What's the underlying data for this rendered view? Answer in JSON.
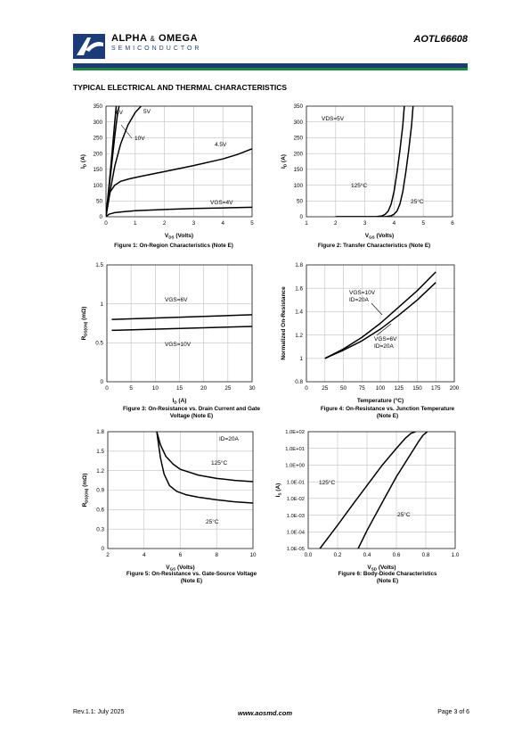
{
  "header": {
    "company_name": "ALPHA",
    "company_amp": "&",
    "company_name2": "OMEGA",
    "company_sub": "SEMICONDUCTOR",
    "part_number": "AOTL66608"
  },
  "section_title": "TYPICAL ELECTRICAL AND THERMAL CHARACTERISTICS",
  "figures": [
    {
      "caption_line1": "Figure 1: On-Region Characteristics (Note E)",
      "caption_line2": ""
    },
    {
      "caption_line1": "Figure 2: Transfer Characteristics (Note E)",
      "caption_line2": ""
    },
    {
      "caption_line1": "Figure 3: On-Resistance vs. Drain Current and Gate",
      "caption_line2": "Voltage (Note E)"
    },
    {
      "caption_line1": "Figure 4: On-Resistance vs. Junction Temperature",
      "caption_line2": "(Note E)"
    },
    {
      "caption_line1": "Figure 5: On-Resistance vs. Gate-Source Voltage",
      "caption_line2": "(Note E)"
    },
    {
      "caption_line1": "Figure 6: Body-Diode Characteristics",
      "caption_line2": "(Note E)"
    }
  ],
  "chart_data": [
    {
      "type": "line",
      "xlabel": "VDS (Volts)",
      "ylabel": "ID (A)",
      "xlim": [
        0,
        5
      ],
      "ylim": [
        0,
        350
      ],
      "xticks": [
        "0",
        "1",
        "2",
        "3",
        "4",
        "5"
      ],
      "yticks": [
        "0",
        "50",
        "100",
        "150",
        "200",
        "250",
        "300",
        "350"
      ],
      "grid": true,
      "annotations": [
        "6V",
        "5V",
        "10V",
        "4.5V",
        "VGS=4V"
      ],
      "series": [
        {
          "name": "10V",
          "x": [
            0,
            0.1,
            0.2,
            0.3,
            0.35
          ],
          "y": [
            0,
            95,
            195,
            300,
            350
          ]
        },
        {
          "name": "6V",
          "x": [
            0,
            0.1,
            0.2,
            0.3,
            0.4,
            0.45
          ],
          "y": [
            0,
            85,
            170,
            255,
            330,
            350
          ]
        },
        {
          "name": "5V",
          "x": [
            0,
            0.15,
            0.3,
            0.5,
            0.75,
            1.0,
            1.2
          ],
          "y": [
            0,
            85,
            160,
            230,
            290,
            330,
            350
          ]
        },
        {
          "name": "4.5V",
          "x": [
            0,
            0.05,
            0.15,
            0.3,
            0.5,
            0.8,
            1.2,
            2.0,
            3.0,
            4.0,
            4.5,
            5.0
          ],
          "y": [
            0,
            45,
            80,
            100,
            112,
            120,
            128,
            143,
            162,
            183,
            197,
            215
          ]
        },
        {
          "name": "VGS=4V",
          "x": [
            0,
            0.1,
            0.3,
            0.6,
            1.0,
            2.0,
            3.0,
            4.0,
            5.0
          ],
          "y": [
            0,
            8,
            13,
            16,
            19,
            23,
            26,
            28,
            30
          ]
        }
      ]
    },
    {
      "type": "line",
      "xlabel": "VGS (Volts)",
      "ylabel": "ID (A)",
      "xlim": [
        1,
        6
      ],
      "ylim": [
        0,
        350
      ],
      "xticks": [
        "1",
        "2",
        "3",
        "4",
        "5",
        "6"
      ],
      "yticks": [
        "0",
        "50",
        "100",
        "150",
        "200",
        "250",
        "300",
        "350"
      ],
      "grid": true,
      "annotations": [
        "VDS=5V",
        "125°C",
        "25°C"
      ],
      "series": [
        {
          "name": "125°C",
          "x": [
            2.0,
            3.0,
            3.4,
            3.6,
            3.7,
            3.8,
            3.9,
            4.0,
            4.1,
            4.2,
            4.3,
            4.35
          ],
          "y": [
            0,
            0,
            0.5,
            3,
            8,
            18,
            40,
            80,
            140,
            210,
            290,
            350
          ]
        },
        {
          "name": "25°C",
          "x": [
            2.0,
            3.3,
            3.7,
            3.9,
            4.0,
            4.1,
            4.2,
            4.3,
            4.4,
            4.5,
            4.6,
            4.65
          ],
          "y": [
            0,
            0,
            0.5,
            3,
            8,
            18,
            40,
            80,
            140,
            210,
            290,
            350
          ]
        }
      ]
    },
    {
      "type": "line",
      "xlabel": "ID (A)",
      "ylabel": "RDS(ON) (mΩ)",
      "xlim": [
        0,
        30
      ],
      "ylim": [
        0,
        1.5
      ],
      "xticks": [
        "0",
        "5",
        "10",
        "15",
        "20",
        "25",
        "30"
      ],
      "yticks": [
        "0",
        "0.5",
        "1",
        "1.5"
      ],
      "grid": true,
      "annotations": [
        "VGS=6V",
        "VGS=10V"
      ],
      "series": [
        {
          "name": "VGS=6V",
          "x": [
            1,
            30
          ],
          "y": [
            0.8,
            0.86
          ]
        },
        {
          "name": "VGS=10V",
          "x": [
            1,
            30
          ],
          "y": [
            0.66,
            0.71
          ]
        }
      ]
    },
    {
      "type": "line",
      "xlabel": "Temperature (°C)",
      "ylabel": "Normalized On-Resistance",
      "xlim": [
        0,
        200
      ],
      "ylim": [
        0.8,
        1.8
      ],
      "xticks": [
        "0",
        "25",
        "50",
        "75",
        "100",
        "125",
        "150",
        "175",
        "200"
      ],
      "yticks": [
        "0.8",
        "1",
        "1.2",
        "1.4",
        "1.6",
        "1.8"
      ],
      "grid": true,
      "annotations": [
        "VGS=10V",
        "ID=20A",
        "VGS=6V",
        "ID=20A"
      ],
      "series": [
        {
          "name": "VGS=10V",
          "x": [
            25,
            50,
            75,
            100,
            125,
            150,
            175
          ],
          "y": [
            1.0,
            1.08,
            1.18,
            1.3,
            1.44,
            1.58,
            1.74
          ]
        },
        {
          "name": "VGS=6V",
          "x": [
            25,
            50,
            75,
            100,
            125,
            150,
            175
          ],
          "y": [
            1.0,
            1.07,
            1.15,
            1.25,
            1.37,
            1.5,
            1.65
          ]
        }
      ]
    },
    {
      "type": "line",
      "xlabel": "VGS (Volts)",
      "ylabel": "RDS(ON) (mΩ)",
      "xlim": [
        2,
        10
      ],
      "ylim": [
        0,
        1.8
      ],
      "xticks": [
        "2",
        "4",
        "6",
        "8",
        "10"
      ],
      "yticks": [
        "0",
        "0.3",
        "0.6",
        "0.9",
        "1.2",
        "1.5",
        "1.8"
      ],
      "grid": true,
      "annotations": [
        "ID=20A",
        "125°C",
        "25°C"
      ],
      "series": [
        {
          "name": "125°C",
          "x": [
            4.7,
            4.9,
            5.2,
            5.6,
            6.0,
            7.0,
            8.0,
            9.0,
            10.0
          ],
          "y": [
            1.8,
            1.6,
            1.42,
            1.3,
            1.22,
            1.13,
            1.08,
            1.05,
            1.03
          ]
        },
        {
          "name": "25°C",
          "x": [
            4.7,
            4.9,
            5.1,
            5.4,
            5.8,
            6.3,
            7.0,
            8.0,
            9.0,
            10.0
          ],
          "y": [
            1.8,
            1.4,
            1.15,
            0.97,
            0.88,
            0.83,
            0.79,
            0.75,
            0.72,
            0.7
          ]
        }
      ]
    },
    {
      "type": "line",
      "xlabel": "VSD (Volts)",
      "ylabel": "IS (A)",
      "log_y": true,
      "xlim": [
        0,
        1.0
      ],
      "ylim": [
        1e-05,
        100
      ],
      "xticks": [
        "0.0",
        "0.2",
        "0.4",
        "0.6",
        "0.8",
        "1.0"
      ],
      "yticks": [
        "1.0E-05",
        "1.0E-04",
        "1.0E-03",
        "1.0E-02",
        "1.0E-01",
        "1.0E+00",
        "1.0E+01",
        "1.0E+02"
      ],
      "grid": true,
      "annotations": [
        "125°C",
        "25°C"
      ],
      "series": [
        {
          "name": "125°C",
          "x": [
            0.08,
            0.2,
            0.3,
            0.4,
            0.5,
            0.6,
            0.66,
            0.7,
            0.73
          ],
          "y": [
            1e-05,
            0.00025,
            0.004,
            0.06,
            0.9,
            10,
            40,
            80,
            100
          ]
        },
        {
          "name": "25°C",
          "x": [
            0.34,
            0.4,
            0.5,
            0.6,
            0.7,
            0.75,
            0.78,
            0.81
          ],
          "y": [
            1e-05,
            0.00012,
            0.005,
            0.2,
            5,
            25,
            60,
            100
          ]
        }
      ]
    }
  ],
  "footer": {
    "revision": "Rev.1.1: July 2025",
    "website": "www.aosmd.com",
    "page": "Page 3 of 6"
  }
}
